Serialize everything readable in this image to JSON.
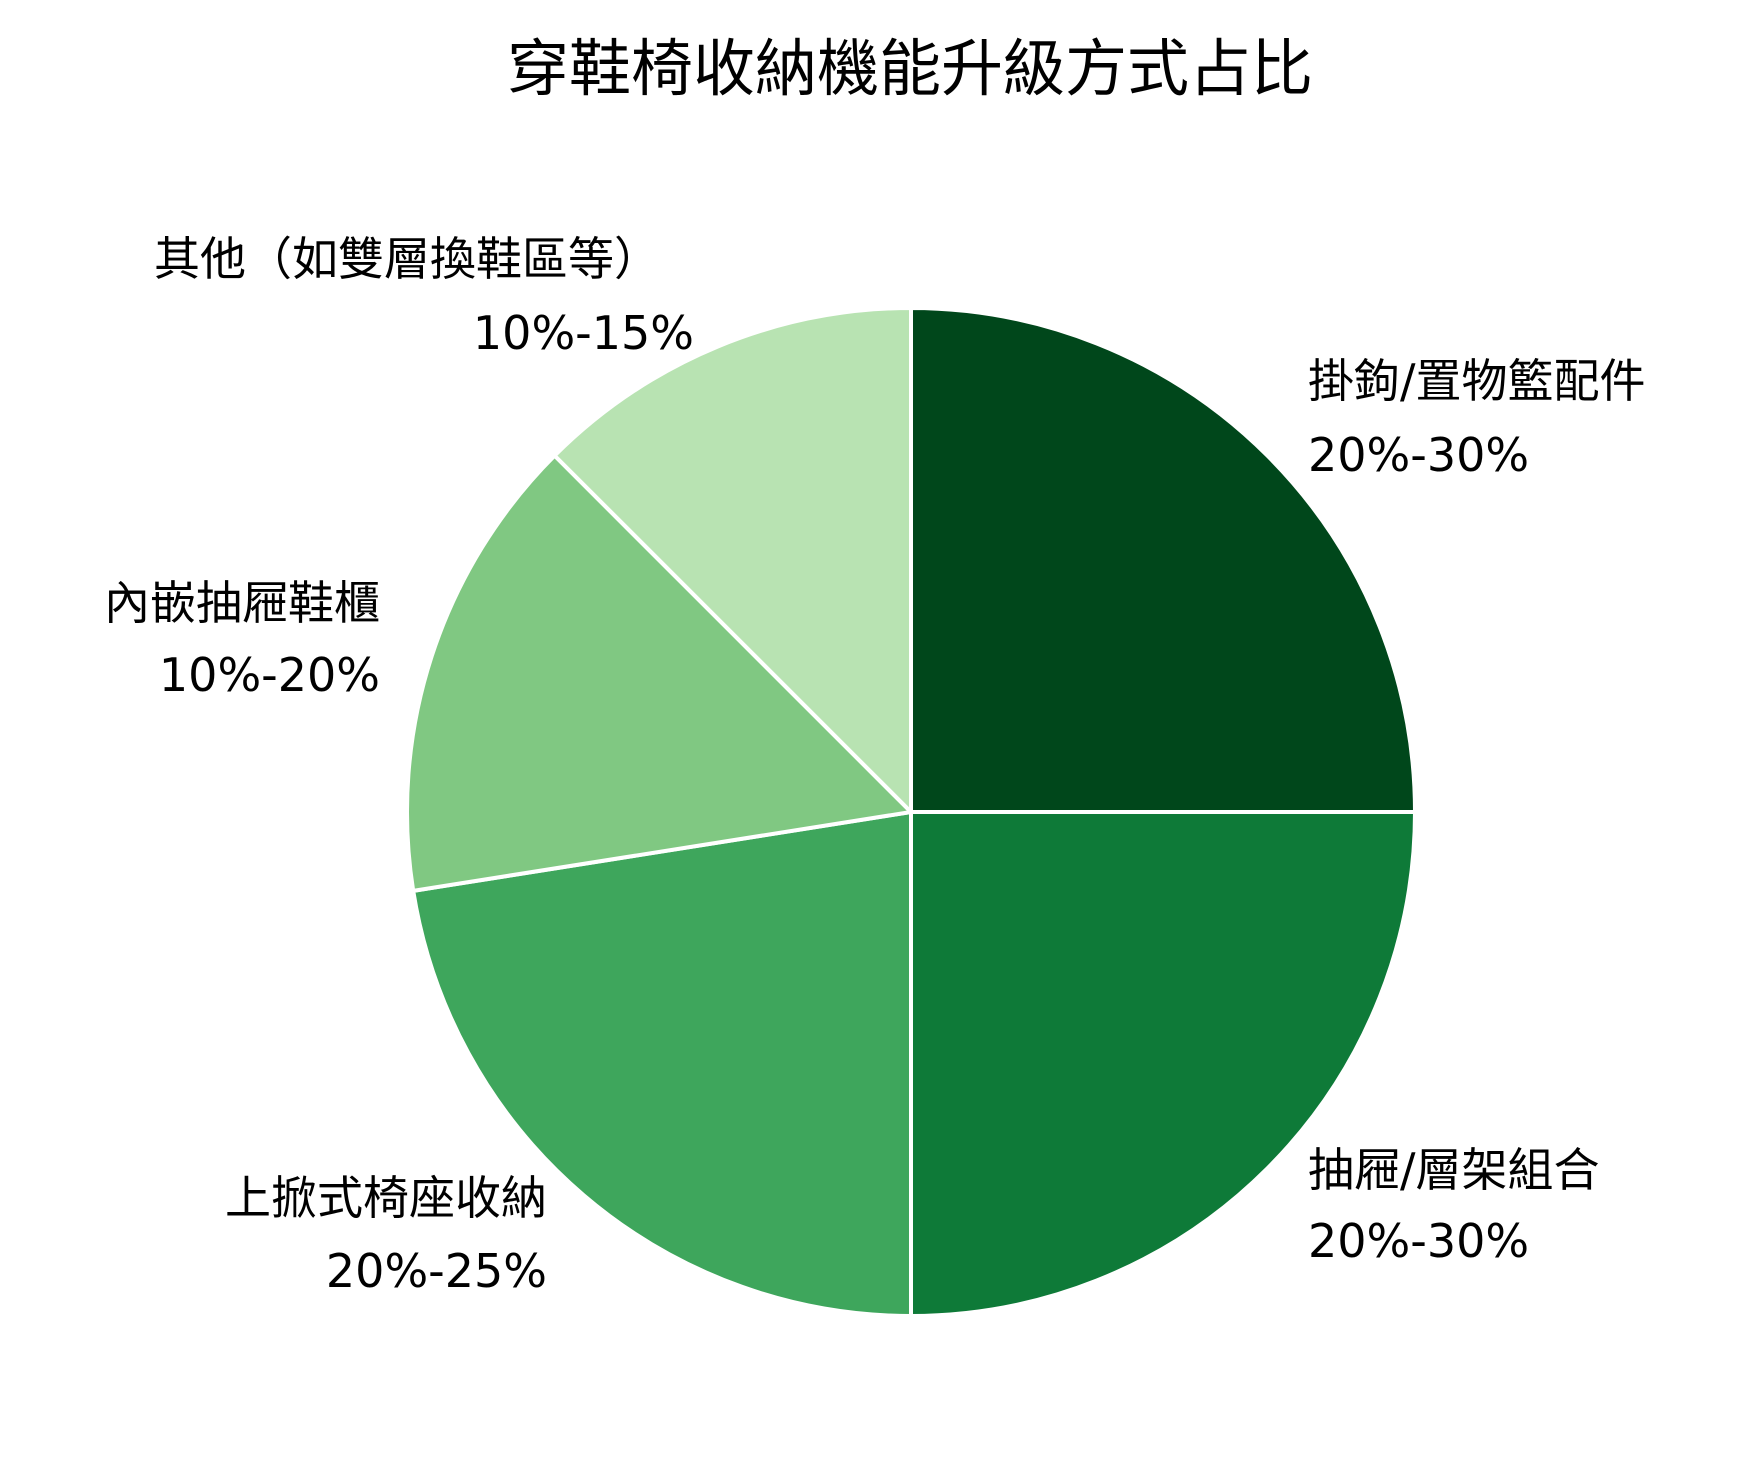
{
  "chart_data": {
    "type": "pie",
    "title": "穿鞋椅收納機能升級方式占比",
    "start_angle": "top",
    "direction": "clockwise",
    "slices": [
      {
        "label": "掛鉤/置物籃配件",
        "range_label": "20%-30%",
        "value": 25,
        "color": "#00471b"
      },
      {
        "label": "抽屜/層架組合",
        "range_label": "20%-30%",
        "value": 25,
        "color": "#0e7a38"
      },
      {
        "label": "上掀式椅座收納",
        "range_label": "20%-25%",
        "value": 22.5,
        "color": "#3ea65c"
      },
      {
        "label": "內嵌抽屜鞋櫃",
        "range_label": "10%-20%",
        "value": 15,
        "color": "#80c882"
      },
      {
        "label": "其他（如雙層換鞋區等）",
        "range_label": "10%-15%",
        "value": 12.5,
        "color": "#b8e3b2"
      }
    ]
  }
}
